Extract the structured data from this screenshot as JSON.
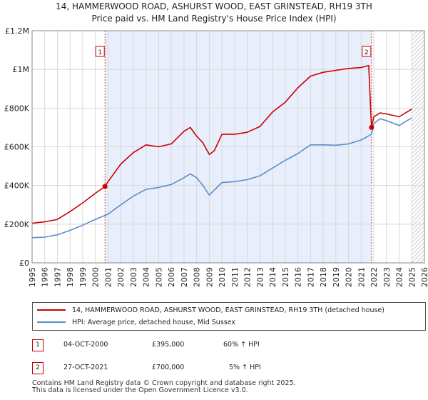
{
  "title_line1": "14, HAMMERWOOD ROAD, ASHURST WOOD, EAST GRINSTEAD, RH19 3TH",
  "title_line2": "Price paid vs. HM Land Registry's House Price Index (HPI)",
  "colors": {
    "property": "#cc0000",
    "hpi": "#5b8ec7",
    "shade": "#e8eefb",
    "marker": "#cc0000"
  },
  "legend": {
    "property": "14, HAMMERWOOD ROAD, ASHURST WOOD, EAST GRINSTEAD, RH19 3TH (detached house)",
    "hpi": "HPI: Average price, detached house, Mid Sussex"
  },
  "sales": [
    {
      "num": "1",
      "date": "04-OCT-2000",
      "price": "£395,000",
      "change": "60% ↑ HPI"
    },
    {
      "num": "2",
      "date": "27-OCT-2021",
      "price": "£700,000",
      "change": "5% ↑ HPI"
    }
  ],
  "footer": {
    "line1": "Contains HM Land Registry data © Crown copyright and database right 2025.",
    "line2": "This data is licensed under the Open Government Licence v3.0."
  },
  "chart_data": {
    "type": "line",
    "xlabel": "",
    "ylabel": "",
    "xlim": [
      1995,
      2026
    ],
    "ylim": [
      0,
      1200000
    ],
    "x_ticks": [
      "1995",
      "1996",
      "1997",
      "1998",
      "1999",
      "2000",
      "2001",
      "2002",
      "2003",
      "2004",
      "2005",
      "2006",
      "2007",
      "2008",
      "2009",
      "2010",
      "2011",
      "2012",
      "2013",
      "2014",
      "2015",
      "2016",
      "2017",
      "2018",
      "2019",
      "2020",
      "2021",
      "2022",
      "2023",
      "2024",
      "2025",
      "2026"
    ],
    "y_ticks": [
      {
        "value": 0,
        "label": "£0"
      },
      {
        "value": 200000,
        "label": "£200K"
      },
      {
        "value": 400000,
        "label": "£400K"
      },
      {
        "value": 600000,
        "label": "£600K"
      },
      {
        "value": 800000,
        "label": "£800K"
      },
      {
        "value": 1000000,
        "label": "£1M"
      },
      {
        "value": 1200000,
        "label": "£1.2M"
      }
    ],
    "grid": true,
    "shaded_region": [
      2000.76,
      2021.82
    ],
    "hatched_region": [
      2025.0,
      2026.0
    ],
    "markers": [
      {
        "label": "1",
        "x": 2000.76,
        "y": 395000
      },
      {
        "label": "2",
        "x": 2021.82,
        "y": 700000
      }
    ],
    "series": [
      {
        "name": "property",
        "x": [
          1995,
          1996,
          1997,
          1998,
          1999,
          2000,
          2000.76,
          2001,
          2002,
          2003,
          2004,
          2005,
          2006,
          2007,
          2007.5,
          2008,
          2008.5,
          2009,
          2009.4,
          2010,
          2011,
          2012,
          2013,
          2014,
          2015,
          2016,
          2017,
          2018,
          2019,
          2020,
          2021,
          2021.6,
          2021.82,
          2022,
          2022.5,
          2023,
          2024,
          2025
        ],
        "y": [
          205000,
          212000,
          225000,
          265000,
          310000,
          360000,
          395000,
          420000,
          510000,
          570000,
          610000,
          600000,
          615000,
          680000,
          700000,
          655000,
          620000,
          560000,
          580000,
          665000,
          665000,
          675000,
          705000,
          780000,
          830000,
          905000,
          965000,
          985000,
          995000,
          1005000,
          1010000,
          1020000,
          700000,
          755000,
          775000,
          770000,
          755000,
          795000
        ]
      },
      {
        "name": "hpi",
        "x": [
          1995,
          1996,
          1997,
          1998,
          1999,
          2000,
          2001,
          2002,
          2003,
          2004,
          2005,
          2006,
          2007,
          2007.5,
          2008,
          2008.5,
          2009,
          2009.3,
          2010,
          2011,
          2012,
          2013,
          2014,
          2015,
          2016,
          2017,
          2018,
          2019,
          2020,
          2021,
          2021.82,
          2022,
          2022.5,
          2023,
          2024,
          2025
        ],
        "y": [
          130000,
          133000,
          145000,
          168000,
          195000,
          225000,
          252000,
          300000,
          345000,
          380000,
          390000,
          405000,
          440000,
          460000,
          440000,
          400000,
          350000,
          370000,
          415000,
          420000,
          430000,
          450000,
          490000,
          530000,
          565000,
          610000,
          610000,
          608000,
          615000,
          635000,
          665000,
          720000,
          745000,
          735000,
          710000,
          750000
        ]
      }
    ]
  }
}
